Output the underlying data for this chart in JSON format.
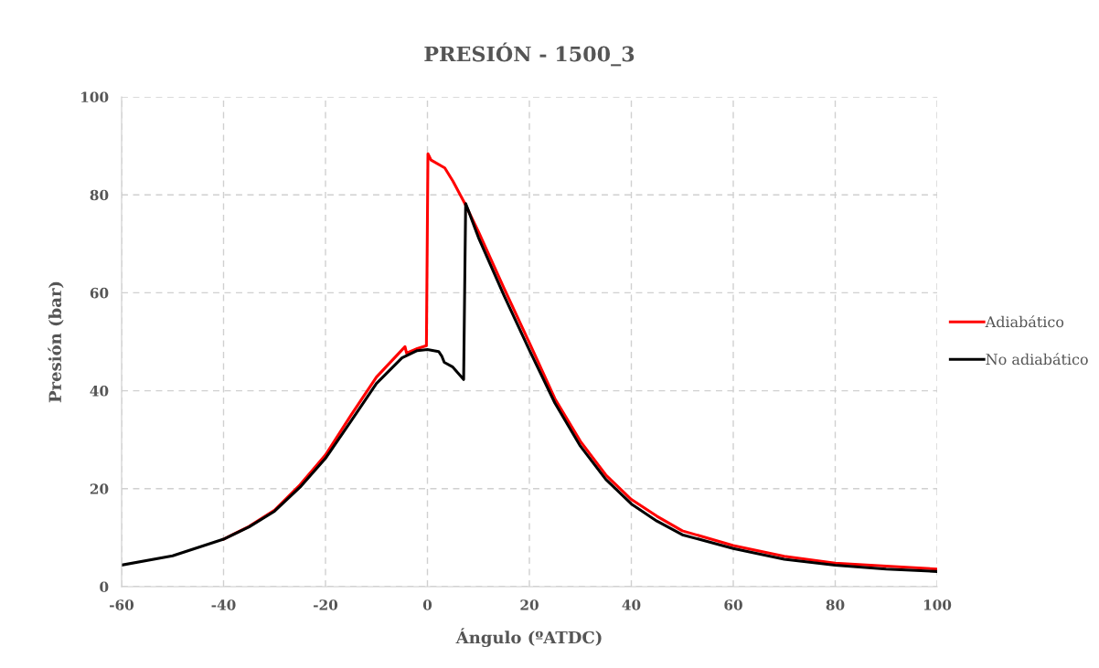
{
  "chart_data": {
    "type": "line",
    "title": "PRESIÓN - 1500_3",
    "xlabel": "Ángulo (ºATDC)",
    "ylabel": "Presión (bar)",
    "xlim": [
      -60,
      100
    ],
    "xticks": [
      -60,
      -40,
      -20,
      0,
      20,
      40,
      60,
      80,
      100
    ],
    "ylim": [
      0,
      100
    ],
    "yticks": [
      0,
      20,
      40,
      60,
      80,
      100
    ],
    "grid": true,
    "legend": "right",
    "marker": "none",
    "line_style": "solid",
    "series": [
      {
        "name": "Adiabático",
        "color": "#ff0000",
        "x": [
          -40,
          -35,
          -30,
          -25,
          -20,
          -15,
          -10,
          -4.4,
          -4.1,
          -2,
          -0.2,
          0.1,
          0.7,
          3.4,
          5,
          7.2,
          10,
          15,
          20,
          25,
          30,
          35,
          40,
          45,
          50,
          60,
          70,
          80,
          90,
          100
        ],
        "values": [
          9.7,
          12.3,
          15.6,
          20.8,
          26.9,
          35,
          42.8,
          49.0,
          47.7,
          48.6,
          49.2,
          88.4,
          87.1,
          85.5,
          82.8,
          78.5,
          72.5,
          61,
          49.8,
          38.4,
          29.7,
          22.8,
          17.8,
          14.4,
          11.4,
          8.4,
          6.2,
          4.8,
          4.2,
          3.6
        ]
      },
      {
        "name": "No adiabático",
        "color": "#000000",
        "x": [
          -60,
          -50,
          -40,
          -35,
          -30,
          -25,
          -20,
          -15,
          -10,
          -5,
          -2,
          0,
          2.2,
          2.8,
          3.3,
          4.9,
          7.1,
          7.5,
          8.1,
          10,
          15,
          20,
          25,
          30,
          35,
          40,
          45,
          50,
          60,
          70,
          80,
          90,
          100
        ],
        "values": [
          4.4,
          6.3,
          9.7,
          12.2,
          15.4,
          20.3,
          26.2,
          33.8,
          41.5,
          46.7,
          48.2,
          48.4,
          48,
          47.1,
          45.8,
          44.9,
          42.3,
          78.2,
          76.6,
          71.3,
          59.5,
          48.3,
          37.5,
          28.7,
          21.9,
          16.9,
          13.4,
          10.6,
          7.8,
          5.6,
          4.4,
          3.6,
          3.1
        ]
      }
    ]
  }
}
